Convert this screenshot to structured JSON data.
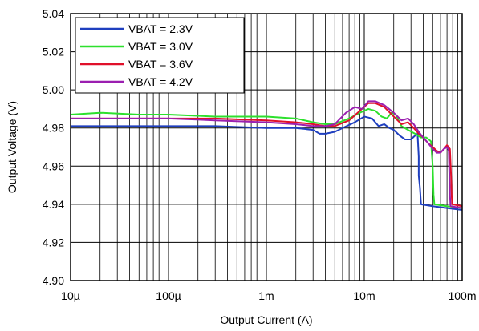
{
  "colors": {
    "grid": "#000000",
    "background": "#ffffff",
    "axis": "#000000"
  },
  "chart_data": {
    "type": "line",
    "xscale": "log",
    "xlim": [
      1e-05,
      0.1
    ],
    "ylim": [
      4.9,
      5.04
    ],
    "xlabel": "Output Current (A)",
    "ylabel": "Output Voltage (V)",
    "grid": true,
    "legend_placement": "top-left",
    "x_ticks": [
      {
        "value": 1e-05,
        "label": "10µ"
      },
      {
        "value": 0.0001,
        "label": "100µ"
      },
      {
        "value": 0.001,
        "label": "1m"
      },
      {
        "value": 0.01,
        "label": "10m"
      },
      {
        "value": 0.1,
        "label": "100m"
      }
    ],
    "y_ticks": [
      {
        "value": 4.9,
        "label": "4.90"
      },
      {
        "value": 4.92,
        "label": "4.92"
      },
      {
        "value": 4.94,
        "label": "4.94"
      },
      {
        "value": 4.96,
        "label": "4.96"
      },
      {
        "value": 4.98,
        "label": "4.98"
      },
      {
        "value": 5.0,
        "label": "5.00"
      },
      {
        "value": 5.02,
        "label": "5.02"
      },
      {
        "value": 5.04,
        "label": "5.04"
      }
    ],
    "series": [
      {
        "name": "VBAT = 2.3V",
        "color": "#1f3fbf",
        "points": [
          [
            1e-05,
            4.981
          ],
          [
            3e-05,
            4.981
          ],
          [
            0.0001,
            4.981
          ],
          [
            0.0003,
            4.981
          ],
          [
            0.001,
            4.98
          ],
          [
            0.002,
            4.98
          ],
          [
            0.003,
            4.979
          ],
          [
            0.0035,
            4.977
          ],
          [
            0.004,
            4.977
          ],
          [
            0.005,
            4.978
          ],
          [
            0.006,
            4.98
          ],
          [
            0.008,
            4.983
          ],
          [
            0.01,
            4.986
          ],
          [
            0.012,
            4.985
          ],
          [
            0.014,
            4.981
          ],
          [
            0.016,
            4.982
          ],
          [
            0.018,
            4.98
          ],
          [
            0.02,
            4.979
          ],
          [
            0.023,
            4.976
          ],
          [
            0.026,
            4.974
          ],
          [
            0.03,
            4.974
          ],
          [
            0.033,
            4.976
          ],
          [
            0.035,
            4.977
          ],
          [
            0.036,
            4.965
          ],
          [
            0.036,
            4.955
          ],
          [
            0.037,
            4.949
          ],
          [
            0.038,
            4.94
          ],
          [
            0.05,
            4.939
          ],
          [
            0.07,
            4.938
          ],
          [
            0.1,
            4.937
          ]
        ]
      },
      {
        "name": "VBAT = 3.0V",
        "color": "#2de02d",
        "points": [
          [
            1e-05,
            4.987
          ],
          [
            2e-05,
            4.988
          ],
          [
            5e-05,
            4.987
          ],
          [
            0.0001,
            4.987
          ],
          [
            0.0003,
            4.986
          ],
          [
            0.001,
            4.986
          ],
          [
            0.002,
            4.985
          ],
          [
            0.003,
            4.983
          ],
          [
            0.004,
            4.982
          ],
          [
            0.005,
            4.982
          ],
          [
            0.007,
            4.985
          ],
          [
            0.009,
            4.988
          ],
          [
            0.011,
            4.99
          ],
          [
            0.013,
            4.989
          ],
          [
            0.015,
            4.986
          ],
          [
            0.017,
            4.985
          ],
          [
            0.019,
            4.988
          ],
          [
            0.021,
            4.987
          ],
          [
            0.024,
            4.981
          ],
          [
            0.028,
            4.979
          ],
          [
            0.033,
            4.977
          ],
          [
            0.038,
            4.975
          ],
          [
            0.043,
            4.975
          ],
          [
            0.048,
            4.973
          ],
          [
            0.05,
            4.96
          ],
          [
            0.051,
            4.945
          ],
          [
            0.052,
            4.94
          ],
          [
            0.07,
            4.939
          ],
          [
            0.1,
            4.938
          ]
        ]
      },
      {
        "name": "VBAT = 3.6V",
        "color": "#e0102a",
        "points": [
          [
            1e-05,
            4.985
          ],
          [
            0.0001,
            4.985
          ],
          [
            0.0003,
            4.985
          ],
          [
            0.001,
            4.984
          ],
          [
            0.002,
            4.983
          ],
          [
            0.003,
            4.982
          ],
          [
            0.004,
            4.981
          ],
          [
            0.005,
            4.981
          ],
          [
            0.007,
            4.984
          ],
          [
            0.009,
            4.989
          ],
          [
            0.011,
            4.993
          ],
          [
            0.013,
            4.993
          ],
          [
            0.016,
            4.991
          ],
          [
            0.02,
            4.986
          ],
          [
            0.024,
            4.982
          ],
          [
            0.028,
            4.983
          ],
          [
            0.032,
            4.98
          ],
          [
            0.036,
            4.977
          ],
          [
            0.04,
            4.975
          ],
          [
            0.045,
            4.972
          ],
          [
            0.05,
            4.97
          ],
          [
            0.055,
            4.968
          ],
          [
            0.06,
            4.967
          ],
          [
            0.065,
            4.969
          ],
          [
            0.07,
            4.971
          ],
          [
            0.075,
            4.969
          ],
          [
            0.077,
            4.955
          ],
          [
            0.078,
            4.945
          ],
          [
            0.079,
            4.94
          ],
          [
            0.1,
            4.939
          ]
        ]
      },
      {
        "name": "VBAT = 4.2V",
        "color": "#9b1fb0",
        "points": [
          [
            1e-05,
            4.985
          ],
          [
            0.0001,
            4.985
          ],
          [
            0.0003,
            4.984
          ],
          [
            0.001,
            4.983
          ],
          [
            0.002,
            4.982
          ],
          [
            0.003,
            4.981
          ],
          [
            0.004,
            4.981
          ],
          [
            0.005,
            4.982
          ],
          [
            0.0065,
            4.988
          ],
          [
            0.008,
            4.991
          ],
          [
            0.0095,
            4.99
          ],
          [
            0.011,
            4.994
          ],
          [
            0.013,
            4.994
          ],
          [
            0.016,
            4.992
          ],
          [
            0.02,
            4.988
          ],
          [
            0.024,
            4.984
          ],
          [
            0.028,
            4.985
          ],
          [
            0.032,
            4.982
          ],
          [
            0.036,
            4.978
          ],
          [
            0.04,
            4.975
          ],
          [
            0.045,
            4.972
          ],
          [
            0.05,
            4.969
          ],
          [
            0.055,
            4.967
          ],
          [
            0.06,
            4.967
          ],
          [
            0.065,
            4.969
          ],
          [
            0.07,
            4.97
          ],
          [
            0.073,
            4.968
          ],
          [
            0.074,
            4.955
          ],
          [
            0.075,
            4.945
          ],
          [
            0.076,
            4.939
          ],
          [
            0.1,
            4.938
          ]
        ]
      }
    ]
  }
}
